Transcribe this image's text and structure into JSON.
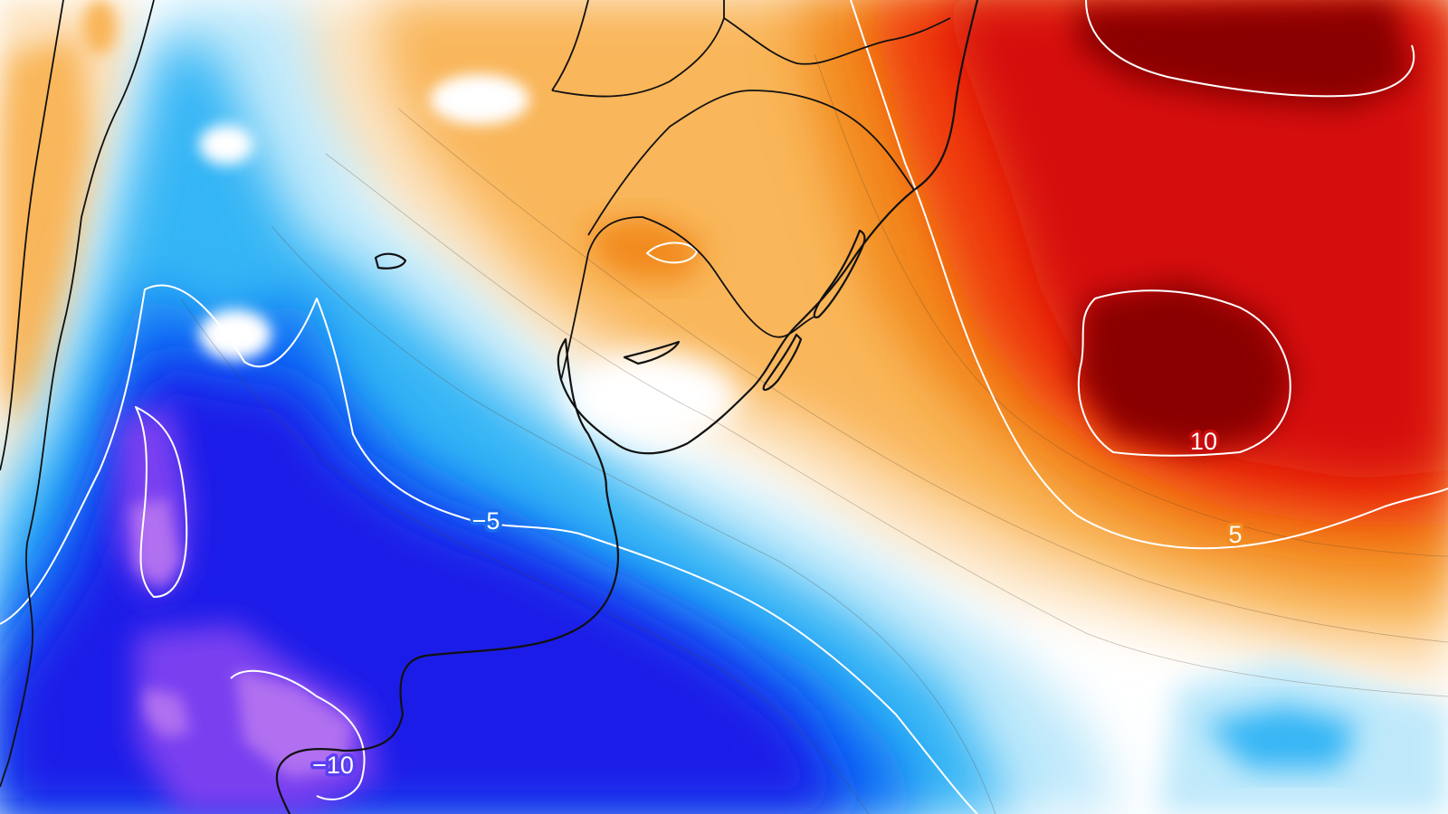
{
  "map": {
    "colors": {
      "cold_extreme": "#b070f0",
      "cold_deep": "#7a3ff0",
      "cold_strong": "#1a1fe8",
      "cold_mid": "#0a6cf5",
      "cold_light": "#35b5f5",
      "cold_faint": "#bfe9fb",
      "neutral": "#ffffff",
      "warm_faint": "#fde3bf",
      "warm_light": "#f9b65a",
      "warm_mid": "#f28a1e",
      "warm_strong": "#f03a10",
      "warm_deep": "#d50d0d",
      "warm_extreme": "#8a0000"
    },
    "contour_labels": [
      {
        "id": "minus-5",
        "text": "−5"
      },
      {
        "id": "minus-10",
        "text": "−10"
      },
      {
        "id": "plus-5",
        "text": "5"
      },
      {
        "id": "plus-10",
        "text": "10"
      }
    ]
  }
}
